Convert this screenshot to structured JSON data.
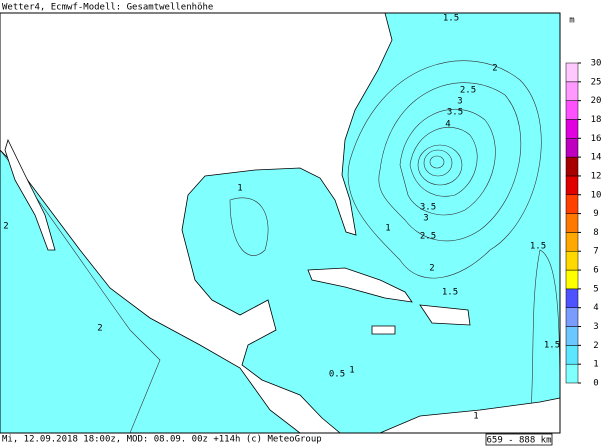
{
  "header": {
    "title": "Wetter4, Ecmwf-Modell: Gesamtwellenhöhe"
  },
  "footer": {
    "info": "Mi, 12.09.2018 18:00z, MOD: 08.09. 00z +114h (c) MeteoGroup",
    "scale": "659 - 888 km"
  },
  "legend": {
    "unit": "m",
    "levels": [
      0,
      1,
      2,
      3,
      4,
      5,
      6,
      7,
      8,
      9,
      10,
      12,
      14,
      16,
      18,
      20,
      25,
      30
    ],
    "colors": [
      "#80ffff",
      "#5ce6ff",
      "#6cc6ff",
      "#7a9cff",
      "#4f52ff",
      "#ffff00",
      "#ffd800",
      "#ffa800",
      "#ff7800",
      "#ff4000",
      "#e00000",
      "#a80000",
      "#c000c0",
      "#e000e0",
      "#ff50ff",
      "#ff98ff",
      "#ffc8ff"
    ]
  },
  "contour_labels": [
    "1.5",
    "2",
    "2.5",
    "3",
    "3.5",
    "4",
    "1",
    "1",
    "2.5",
    "1.5",
    "2",
    "1.5",
    "2",
    "0.5",
    "1",
    "2",
    "1",
    "1.5",
    "3.5",
    "3"
  ]
}
